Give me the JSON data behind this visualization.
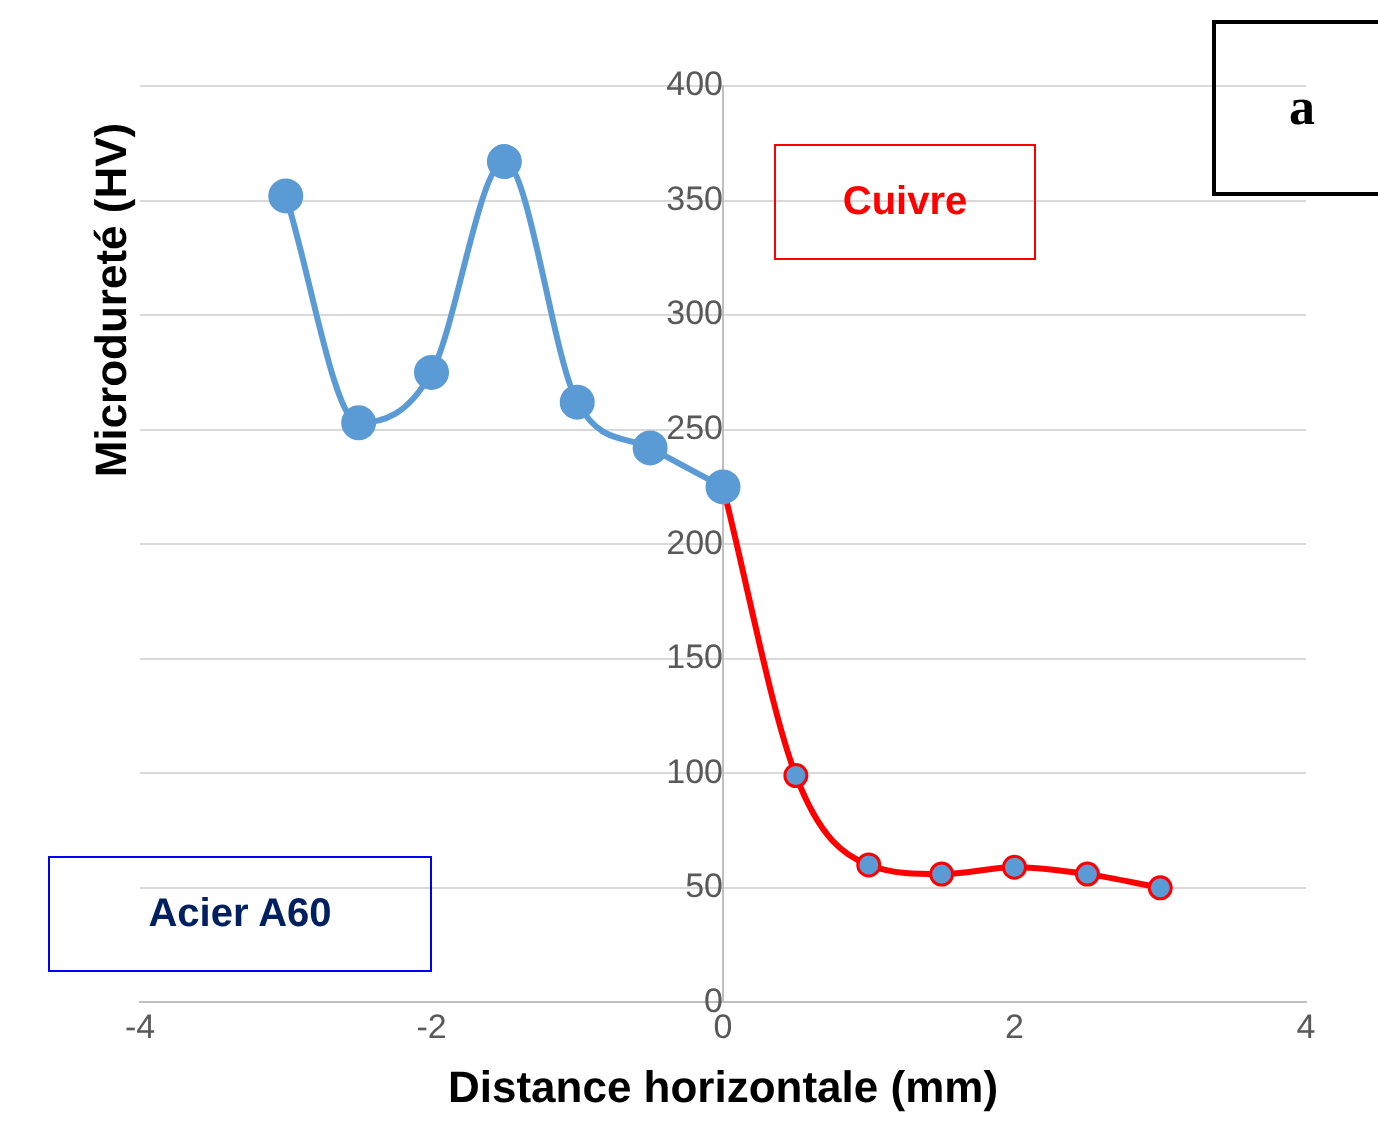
{
  "chart_data": {
    "type": "line",
    "xlabel": "Distance horizontale (mm)",
    "ylabel": "Microdureté (HV)",
    "xlim": [
      -4,
      4
    ],
    "xticks": [
      -4,
      -2,
      0,
      2,
      4
    ],
    "ylim": [
      0,
      400
    ],
    "yticks": [
      0,
      50,
      100,
      150,
      200,
      250,
      300,
      350,
      400
    ],
    "grid": "y",
    "legend": false,
    "marker": "circle",
    "line_style": "solid",
    "series": [
      {
        "color": "#5b9bd5",
        "x": [
          -3,
          -2.5,
          -2,
          -1.5,
          -1,
          -0.5,
          0
        ],
        "values": [
          352,
          253,
          275,
          367,
          262,
          242,
          225
        ]
      },
      {
        "color": "#ff0000",
        "x": [
          0,
          0.5,
          1,
          1.5,
          2,
          2.5,
          3
        ],
        "values": [
          225,
          99,
          60,
          56,
          59,
          56,
          50
        ]
      }
    ],
    "annotations": [
      "a",
      "Cuivre",
      "Acier A60"
    ]
  }
}
